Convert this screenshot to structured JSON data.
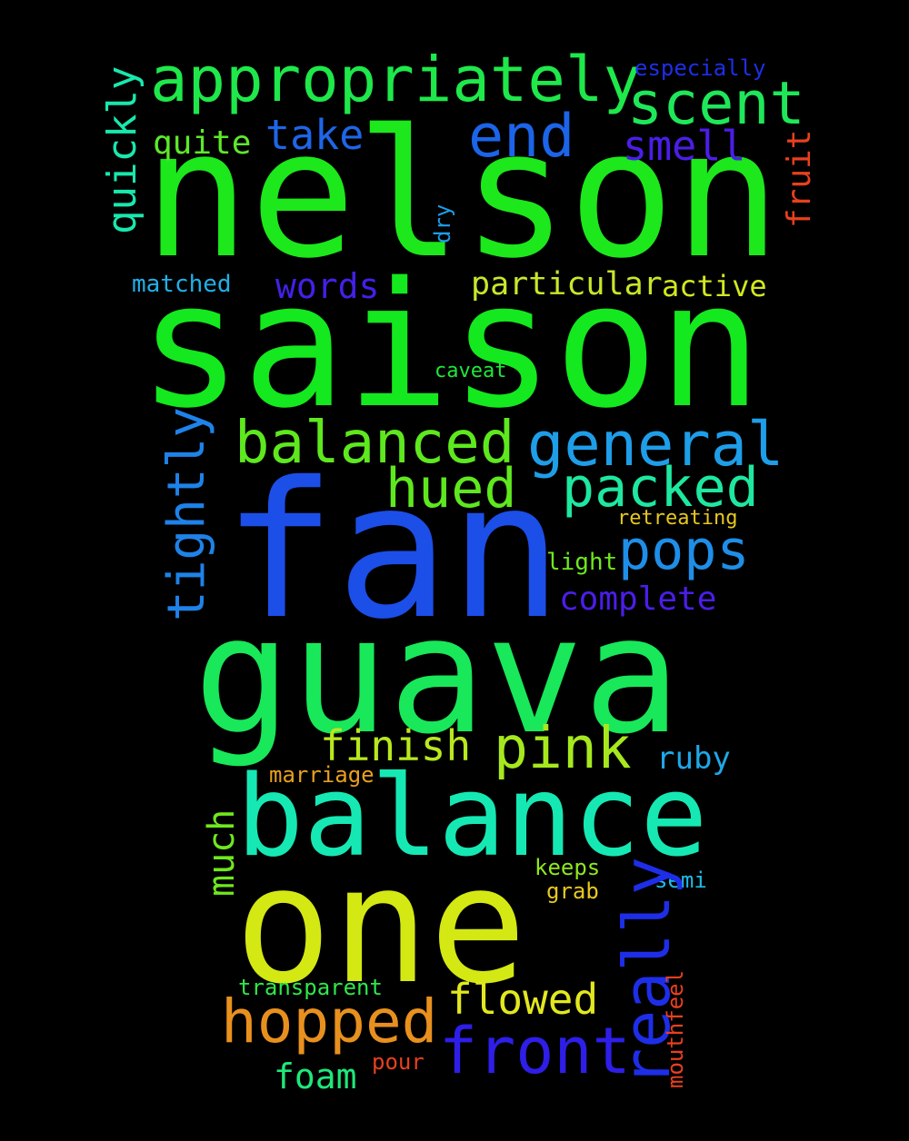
{
  "words": {
    "nelson": {
      "text": "nelson",
      "color": "#1ce81c"
    },
    "saison": {
      "text": "saison",
      "color": "#14e81e"
    },
    "fan": {
      "text": "fan",
      "color": "#1c4ee8"
    },
    "guava": {
      "text": "guava",
      "color": "#18e85a"
    },
    "balance": {
      "text": "balance",
      "color": "#16e8b4"
    },
    "one": {
      "text": "one",
      "color": "#d4e814"
    },
    "appropriately": {
      "text": "appropriately",
      "color": "#1ee84a"
    },
    "scent": {
      "text": "scent",
      "color": "#1ee85a"
    },
    "end": {
      "text": "end",
      "color": "#1c64e8"
    },
    "take": {
      "text": "take",
      "color": "#1e66e8"
    },
    "smell": {
      "text": "smell",
      "color": "#4a1ee8"
    },
    "quite": {
      "text": "quite",
      "color": "#5ee82a"
    },
    "quickly": {
      "text": "quickly",
      "color": "#18e8ae"
    },
    "especially": {
      "text": "especially",
      "color": "#1e2ee8"
    },
    "fruit": {
      "text": "fruit",
      "color": "#e8401e"
    },
    "dry": {
      "text": "dry",
      "color": "#1e9ee8"
    },
    "matched": {
      "text": "matched",
      "color": "#20b0e8"
    },
    "words": {
      "text": "words",
      "color": "#4420e8"
    },
    "particular": {
      "text": "particular",
      "color": "#c6e82a"
    },
    "active": {
      "text": "active",
      "color": "#d2e81e"
    },
    "caveat": {
      "text": "caveat",
      "color": "#1ee83a"
    },
    "balanced": {
      "text": "balanced",
      "color": "#5ee81e"
    },
    "general": {
      "text": "general",
      "color": "#1e9ee8"
    },
    "hued": {
      "text": "hued",
      "color": "#5ee81e"
    },
    "packed": {
      "text": "packed",
      "color": "#1ee8a0"
    },
    "tightly": {
      "text": "tightly",
      "color": "#1e82e8"
    },
    "retreating": {
      "text": "retreating",
      "color": "#e8c81e"
    },
    "pops": {
      "text": "pops",
      "color": "#1e8ee8"
    },
    "light": {
      "text": "light",
      "color": "#6ee81e"
    },
    "complete": {
      "text": "complete",
      "color": "#4a1ee8"
    },
    "finish": {
      "text": "finish",
      "color": "#b8e81e"
    },
    "pink": {
      "text": "pink",
      "color": "#a6e81e"
    },
    "ruby": {
      "text": "ruby",
      "color": "#1ea8e8"
    },
    "marriage": {
      "text": "marriage",
      "color": "#e8a01e"
    },
    "much": {
      "text": "much",
      "color": "#6ee81e"
    },
    "keeps": {
      "text": "keeps",
      "color": "#8ee81e"
    },
    "grab": {
      "text": "grab",
      "color": "#e8c81e"
    },
    "semi": {
      "text": "semi",
      "color": "#1ebce8"
    },
    "really": {
      "text": "really",
      "color": "#1e2ee8"
    },
    "transparent": {
      "text": "transparent",
      "color": "#2ee84a"
    },
    "flowed": {
      "text": "flowed",
      "color": "#e2e81e"
    },
    "mouthfeel": {
      "text": "mouthfeel",
      "color": "#e8401e"
    },
    "hopped": {
      "text": "hopped",
      "color": "#e8901e"
    },
    "front": {
      "text": "front",
      "color": "#2e1ee8"
    },
    "foam": {
      "text": "foam",
      "color": "#1ee87a"
    },
    "pour": {
      "text": "pour",
      "color": "#e8401e"
    }
  }
}
